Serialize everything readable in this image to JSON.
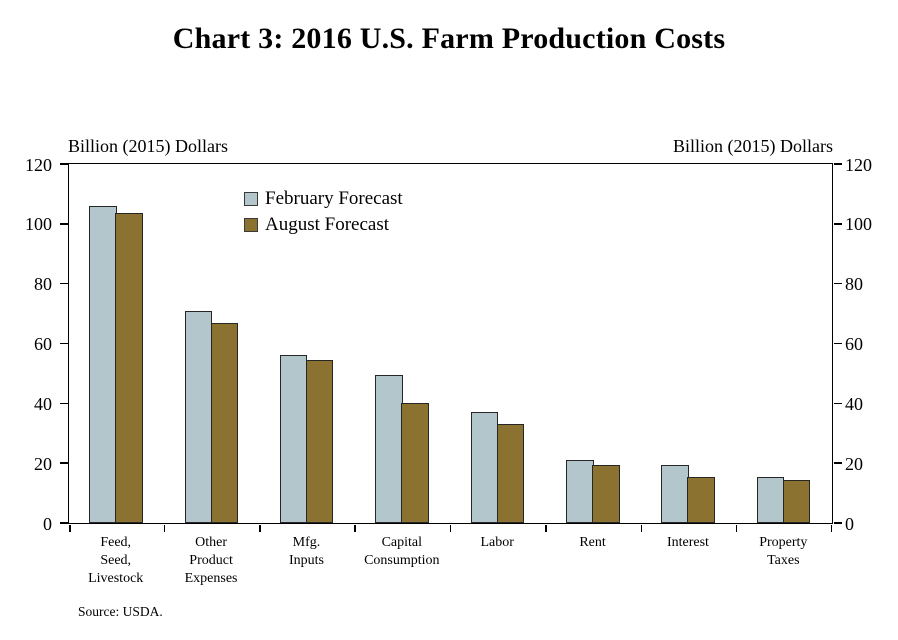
{
  "title": "Chart 3: 2016 U.S. Farm Production Costs",
  "axis_caption_left": "Billion (2015) Dollars",
  "axis_caption_right": "Billion (2015) Dollars",
  "source": "Source: USDA.",
  "colors": {
    "february_fill": "#b3c6cc",
    "august_fill": "#8c7231",
    "bar_border": "#262626",
    "axis": "#000000",
    "text": "#000000",
    "background": "#ffffff"
  },
  "chart_data": {
    "type": "bar",
    "title": "Chart 3: 2016 U.S. Farm Production Costs",
    "ylabel": "Billion (2015) Dollars",
    "ylabel_right": "Billion (2015) Dollars",
    "ylim": [
      0,
      120
    ],
    "yticks": [
      0,
      20,
      40,
      60,
      80,
      100,
      120
    ],
    "grid": false,
    "legend_position": "upper center-left inside plot",
    "categories": [
      "Feed,\nSeed,\nLivestock",
      "Other\nProduct\nExpenses",
      "Mfg.\nInputs",
      "Capital\nConsumption",
      "Labor",
      "Rent",
      "Interest",
      "Property\nTaxes"
    ],
    "series": [
      {
        "name": "February Forecast",
        "color": "#b3c6cc",
        "values": [
          106,
          71,
          56,
          49.5,
          37,
          21,
          19.5,
          15.5
        ]
      },
      {
        "name": "August Forecast",
        "color": "#8c7231",
        "values": [
          103.5,
          67,
          54.5,
          40,
          33,
          19.5,
          15.5,
          14.5
        ]
      }
    ],
    "source": "Source: USDA."
  }
}
